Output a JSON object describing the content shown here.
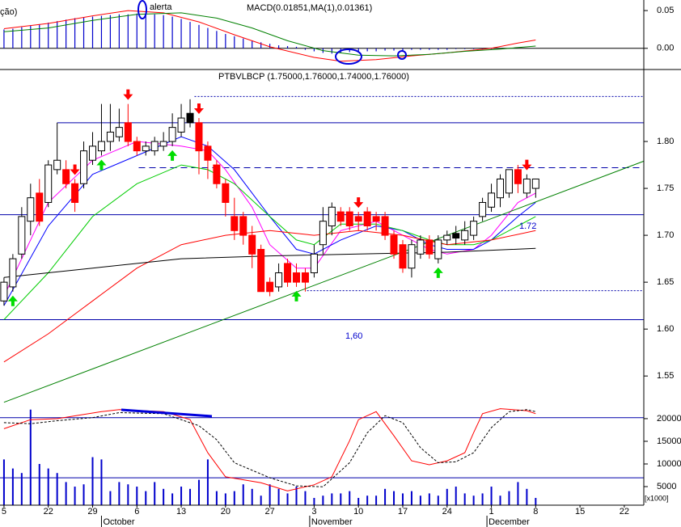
{
  "chart_data": [
    {
      "type": "macd",
      "title": "MACD(0.01851,MA(1),0.01361)",
      "annotations": [
        "ção)",
        "alerta"
      ],
      "ylim": [
        -0.027,
        0.064
      ],
      "yticks": [
        {
          "value": 0.05,
          "label": "0.05"
        },
        {
          "value": 0,
          "label": "0.00"
        }
      ],
      "hlines": [
        0
      ],
      "histogram": {
        "color": "#0000cc",
        "values": [
          0.025,
          0.026,
          0.028,
          0.03,
          0.032,
          0.034,
          0.036,
          0.038,
          0.04,
          0.041,
          0.042,
          0.043,
          0.044,
          0.045,
          0.045,
          0.046,
          0.046,
          0.045,
          0.044,
          0.042,
          0.039,
          0.035,
          0.031,
          0.027,
          0.023,
          0.019,
          0.016,
          0.013,
          0.01,
          0.008,
          0.006,
          0.004,
          0.003,
          0.002,
          -0.002,
          -0.004,
          -0.006,
          -0.007,
          -0.006,
          -0.005,
          -0.005,
          -0.004,
          -0.004,
          -0.003,
          -0.003,
          -0.003,
          -0.002,
          -0.002,
          -0.002,
          -0.002,
          -0.002,
          -0.001,
          -0.001,
          -0.001,
          -0.001,
          -0.001
        ]
      },
      "series": [
        {
          "color": "#ff0000",
          "x": [
            0,
            5,
            10,
            14,
            18,
            22,
            26,
            30,
            35,
            38,
            42,
            46,
            50,
            55,
            58,
            60
          ],
          "values": [
            0.026,
            0.033,
            0.043,
            0.05,
            0.047,
            0.035,
            0.018,
            0.002,
            -0.012,
            -0.017,
            -0.015,
            -0.01,
            -0.006,
            0.0,
            0.007,
            0.011
          ]
        },
        {
          "color": "#008000",
          "x": [
            0,
            5,
            10,
            15,
            20,
            24,
            28,
            32,
            36,
            40,
            44,
            48,
            52,
            56,
            60
          ],
          "values": [
            0.022,
            0.027,
            0.037,
            0.045,
            0.047,
            0.04,
            0.027,
            0.01,
            -0.003,
            -0.009,
            -0.01,
            -0.008,
            -0.004,
            -0.001,
            0.003
          ]
        }
      ]
    },
    {
      "type": "candlestick",
      "title": "PTBVLBCP (1.75000,1.76000,1.74000,1.76000)",
      "annotations": [
        "1,60",
        "1.72"
      ],
      "ylim": [
        1.52,
        1.875
      ],
      "yticks": [
        {
          "value": 1.8,
          "label": "1.80"
        },
        1.75,
        {
          "value": 1.7,
          "label": "1.70"
        },
        1.65,
        {
          "value": 1.6,
          "label": "1.60"
        },
        1.55
      ],
      "open": [
        1.63,
        1.645,
        1.68,
        1.715,
        1.745,
        1.735,
        1.77,
        1.77,
        1.755,
        1.755,
        1.78,
        1.79,
        1.8,
        1.805,
        1.82,
        1.8,
        1.79,
        1.79,
        1.795,
        1.8,
        1.81,
        1.82,
        1.82,
        1.795,
        1.775,
        1.755,
        1.72,
        1.72,
        1.7,
        1.685,
        1.65,
        1.645,
        1.67,
        1.66,
        1.66,
        1.66,
        1.69,
        1.71,
        1.725,
        1.725,
        1.72,
        1.725,
        1.72,
        1.72,
        1.7,
        1.69,
        1.665,
        1.68,
        1.695,
        1.675,
        1.695,
        1.697,
        1.695,
        1.7,
        1.72,
        1.73,
        1.74,
        1.745,
        1.77,
        1.745,
        1.75
      ],
      "high": [
        1.655,
        1.68,
        1.73,
        1.755,
        1.76,
        1.78,
        1.82,
        1.78,
        1.76,
        1.8,
        1.81,
        1.84,
        1.84,
        1.835,
        1.84,
        1.805,
        1.8,
        1.805,
        1.81,
        1.83,
        1.84,
        1.845,
        1.825,
        1.8,
        1.78,
        1.76,
        1.74,
        1.725,
        1.71,
        1.69,
        1.655,
        1.67,
        1.675,
        1.67,
        1.665,
        1.69,
        1.73,
        1.735,
        1.73,
        1.73,
        1.725,
        1.73,
        1.725,
        1.725,
        1.705,
        1.695,
        1.695,
        1.7,
        1.7,
        1.7,
        1.705,
        1.71,
        1.715,
        1.72,
        1.74,
        1.755,
        1.765,
        1.77,
        1.775,
        1.765,
        1.76
      ],
      "low": [
        1.625,
        1.64,
        1.675,
        1.7,
        1.71,
        1.73,
        1.765,
        1.75,
        1.725,
        1.75,
        1.775,
        1.785,
        1.79,
        1.8,
        1.795,
        1.785,
        1.785,
        1.785,
        1.79,
        1.795,
        1.805,
        1.815,
        1.765,
        1.76,
        1.75,
        1.72,
        1.695,
        1.69,
        1.665,
        1.64,
        1.635,
        1.64,
        1.645,
        1.645,
        1.64,
        1.655,
        1.68,
        1.7,
        1.71,
        1.705,
        1.705,
        1.705,
        1.705,
        1.695,
        1.675,
        1.66,
        1.655,
        1.675,
        1.675,
        1.67,
        1.69,
        1.69,
        1.69,
        1.695,
        1.715,
        1.725,
        1.73,
        1.74,
        1.745,
        1.74,
        1.74
      ],
      "close": [
        1.65,
        1.675,
        1.72,
        1.74,
        1.715,
        1.775,
        1.78,
        1.755,
        1.735,
        1.79,
        1.795,
        1.8,
        1.81,
        1.815,
        1.8,
        1.79,
        1.795,
        1.8,
        1.8,
        1.815,
        1.825,
        1.83,
        1.79,
        1.78,
        1.755,
        1.735,
        1.705,
        1.7,
        1.68,
        1.64,
        1.64,
        1.66,
        1.65,
        1.65,
        1.65,
        1.68,
        1.715,
        1.73,
        1.715,
        1.71,
        1.715,
        1.71,
        1.715,
        1.7,
        1.68,
        1.665,
        1.69,
        1.695,
        1.68,
        1.695,
        1.7,
        1.702,
        1.705,
        1.715,
        1.735,
        1.745,
        1.76,
        1.77,
        1.755,
        1.76,
        1.76
      ],
      "up_color": "#ffffff",
      "down_color": "#ff0000",
      "black_candles": [
        21,
        51
      ],
      "sell_signals": [
        8,
        14,
        22,
        40,
        59
      ],
      "buy_signals": [
        1,
        11,
        19,
        33,
        49
      ],
      "series": [
        {
          "color": "#ff00ff",
          "x": [
            0,
            5,
            10,
            15,
            20,
            23,
            25,
            28,
            30,
            33,
            35,
            38,
            42,
            45,
            48,
            50,
            53,
            55,
            58,
            60
          ],
          "values": [
            1.635,
            1.735,
            1.78,
            1.8,
            1.795,
            1.79,
            1.77,
            1.73,
            1.69,
            1.665,
            1.665,
            1.705,
            1.715,
            1.7,
            1.685,
            1.68,
            1.685,
            1.7,
            1.735,
            1.745
          ]
        },
        {
          "color": "#0000ff",
          "x": [
            0,
            5,
            10,
            15,
            20,
            23,
            26,
            30,
            33,
            35,
            38,
            42,
            45,
            48,
            50,
            53,
            55,
            58,
            60
          ],
          "values": [
            1.625,
            1.71,
            1.765,
            1.785,
            1.805,
            1.795,
            1.77,
            1.72,
            1.685,
            1.68,
            1.695,
            1.71,
            1.705,
            1.69,
            1.685,
            1.685,
            1.695,
            1.72,
            1.735
          ]
        },
        {
          "color": "#00cc00",
          "x": [
            0,
            5,
            10,
            15,
            20,
            23,
            26,
            30,
            33,
            35,
            38,
            42,
            45,
            48,
            50,
            53,
            55,
            58,
            60
          ],
          "values": [
            1.61,
            1.66,
            1.72,
            1.755,
            1.775,
            1.77,
            1.755,
            1.72,
            1.695,
            1.69,
            1.712,
            1.712,
            1.705,
            1.695,
            1.69,
            1.69,
            1.695,
            1.71,
            1.72
          ]
        },
        {
          "color": "#ff0000",
          "x": [
            0,
            5,
            10,
            15,
            20,
            25,
            30,
            35,
            40,
            45,
            50,
            55,
            60
          ],
          "values": [
            1.565,
            1.595,
            1.63,
            1.665,
            1.69,
            1.7,
            1.705,
            1.7,
            1.705,
            1.7,
            1.69,
            1.695,
            1.705
          ]
        },
        {
          "color": "#000000",
          "x": [
            0,
            10,
            20,
            30,
            40,
            50,
            60
          ],
          "values": [
            1.655,
            1.665,
            1.675,
            1.678,
            1.68,
            1.682,
            1.686
          ]
        },
        {
          "color": "#008000",
          "x": [
            0,
            72.2
          ],
          "values": [
            1.522,
            1.779
          ]
        }
      ],
      "hlines": [
        {
          "value": 1.848,
          "from": 21.5,
          "style": "dotted"
        },
        {
          "value": 1.82,
          "from": 6,
          "style": "solid"
        },
        {
          "value": 1.772,
          "from": 15.2,
          "style": "dashed"
        },
        {
          "value": 1.722,
          "from": -0.45,
          "style": "solid"
        },
        {
          "value": 1.641,
          "from": 34.2,
          "style": "dotted"
        },
        {
          "value": 1.61,
          "from": -0.45,
          "style": "solid"
        }
      ]
    },
    {
      "type": "volume",
      "unit_label": "[x1000]",
      "xlim": [
        -0.45,
        72.2
      ],
      "xticks": [
        {
          "value": 0,
          "label": "5"
        },
        {
          "value": 5,
          "label": "22"
        },
        {
          "value": 10,
          "label": "29"
        },
        {
          "value": 15,
          "label": "6"
        },
        {
          "value": 20,
          "label": "13"
        },
        {
          "value": 25,
          "label": "20"
        },
        {
          "value": 30,
          "label": "27"
        },
        {
          "value": 35,
          "label": "3"
        },
        {
          "value": 40,
          "label": "10"
        },
        {
          "value": 45,
          "label": "17"
        },
        {
          "value": 50,
          "label": "24"
        },
        {
          "value": 55,
          "label": "1"
        },
        {
          "value": 60,
          "label": "8"
        },
        {
          "value": 65,
          "label": "15"
        },
        {
          "value": 70,
          "label": "22"
        }
      ],
      "months": [
        {
          "value": 11,
          "label": "October"
        },
        {
          "value": 34.5,
          "label": "November"
        },
        {
          "value": 54.5,
          "label": "December"
        }
      ],
      "ylim": [
        900,
        23200
      ],
      "yticks": [
        20000,
        15000,
        10000,
        5000
      ],
      "color": "#0000cc",
      "values": [
        11000,
        9000,
        8000,
        22000,
        10000,
        9000,
        8000,
        6000,
        5000,
        5500,
        11500,
        11000,
        4000,
        6000,
        5500,
        5000,
        4000,
        6000,
        4500,
        3500,
        5000,
        4500,
        6500,
        11000,
        4000,
        3500,
        4000,
        5500,
        4500,
        3000,
        5500,
        4500,
        3500,
        5000,
        4000,
        2500,
        3000,
        3500,
        3500,
        4000,
        2500,
        3000,
        3000,
        4500,
        4000,
        3500,
        4000,
        3000,
        3500,
        3000,
        4500,
        5000,
        3500,
        3000,
        3500,
        5000,
        3000,
        4000,
        6000,
        4500,
        2500
      ],
      "y2lim": [
        -7.3,
        93.5
      ],
      "y2lines": [
        80,
        20
      ],
      "series": [
        {
          "color": "#ff0000",
          "axis": "y2",
          "style": "solid",
          "x": [
            0,
            3,
            6,
            11,
            13,
            18,
            21,
            23,
            25,
            29,
            32,
            35,
            37,
            39,
            40,
            42,
            44,
            46,
            48,
            50,
            52,
            53,
            54,
            56,
            59,
            60
          ],
          "values": [
            69,
            78,
            79,
            86,
            88,
            86,
            78,
            45,
            21,
            15,
            7,
            13,
            21,
            57,
            78,
            86,
            62,
            37,
            33,
            37,
            45,
            65,
            84,
            89,
            87,
            84
          ]
        },
        {
          "color": "#000000",
          "axis": "y2",
          "style": "dashed",
          "x": [
            0,
            3,
            6,
            10,
            13,
            18,
            22,
            24,
            26,
            30,
            33,
            36,
            39,
            41,
            43,
            45,
            47,
            49,
            51,
            53,
            55,
            57,
            59,
            60
          ],
          "values": [
            75,
            74,
            77,
            80,
            85,
            84,
            72,
            58,
            35,
            20,
            12,
            11,
            35,
            65,
            82,
            75,
            50,
            35,
            36,
            45,
            70,
            86,
            88,
            86
          ]
        }
      ]
    }
  ]
}
